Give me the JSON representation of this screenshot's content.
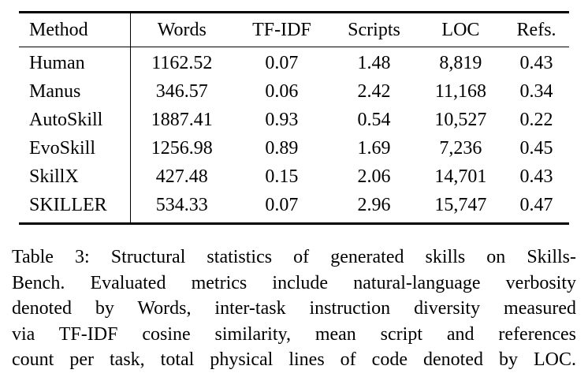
{
  "table": {
    "headers": [
      "Method",
      "Words",
      "TF-IDF",
      "Scripts",
      "LOC",
      "Refs."
    ],
    "rows": [
      [
        "Human",
        "1162.52",
        "0.07",
        "1.48",
        "8,819",
        "0.43"
      ],
      [
        "Manus",
        "346.57",
        "0.06",
        "2.42",
        "11,168",
        "0.34"
      ],
      [
        "AutoSkill",
        "1887.41",
        "0.93",
        "0.54",
        "10,527",
        "0.22"
      ],
      [
        "EvoSkill",
        "1256.98",
        "0.89",
        "1.69",
        "7,236",
        "0.45"
      ],
      [
        "SkillX",
        "427.48",
        "0.15",
        "2.06",
        "14,701",
        "0.43"
      ],
      [
        "SKILLER",
        "534.33",
        "0.07",
        "2.96",
        "15,747",
        "0.47"
      ]
    ]
  },
  "caption": {
    "lines": [
      "Table 3: Structural statistics of generated skills on Skills-",
      "Bench. Evaluated metrics include natural-language verbosity",
      "denoted by Words, inter-task instruction diversity measured",
      "via TF-IDF cosine similarity, mean script and references",
      "count per task, total physical lines of code denoted by LOC."
    ]
  }
}
